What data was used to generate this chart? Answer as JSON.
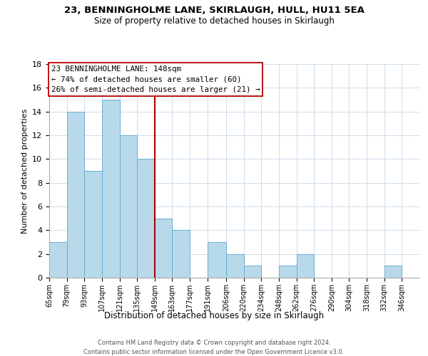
{
  "title_line1": "23, BENNINGHOLME LANE, SKIRLAUGH, HULL, HU11 5EA",
  "title_line2": "Size of property relative to detached houses in Skirlaugh",
  "xlabel": "Distribution of detached houses by size in Skirlaugh",
  "ylabel": "Number of detached properties",
  "bin_labels": [
    "65sqm",
    "79sqm",
    "93sqm",
    "107sqm",
    "121sqm",
    "135sqm",
    "149sqm",
    "163sqm",
    "177sqm",
    "191sqm",
    "206sqm",
    "220sqm",
    "234sqm",
    "248sqm",
    "262sqm",
    "276sqm",
    "290sqm",
    "304sqm",
    "318sqm",
    "332sqm",
    "346sqm"
  ],
  "bin_edges": [
    65,
    79,
    93,
    107,
    121,
    135,
    149,
    163,
    177,
    191,
    206,
    220,
    234,
    248,
    262,
    276,
    290,
    304,
    318,
    332,
    346,
    360
  ],
  "counts": [
    3,
    14,
    9,
    15,
    12,
    10,
    5,
    4,
    0,
    3,
    2,
    1,
    0,
    1,
    2,
    0,
    0,
    0,
    0,
    1,
    0
  ],
  "bar_color": "#b8d9ea",
  "bar_edge_color": "#6aadd5",
  "vline_x": 149,
  "vline_color": "#aa0000",
  "annotation_title": "23 BENNINGHOLME LANE: 148sqm",
  "annotation_line1": "← 74% of detached houses are smaller (60)",
  "annotation_line2": "26% of semi-detached houses are larger (21) →",
  "annotation_box_edge": "#bb0000",
  "ylim": [
    0,
    18
  ],
  "yticks": [
    0,
    2,
    4,
    6,
    8,
    10,
    12,
    14,
    16,
    18
  ],
  "footer_line1": "Contains HM Land Registry data © Crown copyright and database right 2024.",
  "footer_line2": "Contains public sector information licensed under the Open Government Licence v3.0."
}
